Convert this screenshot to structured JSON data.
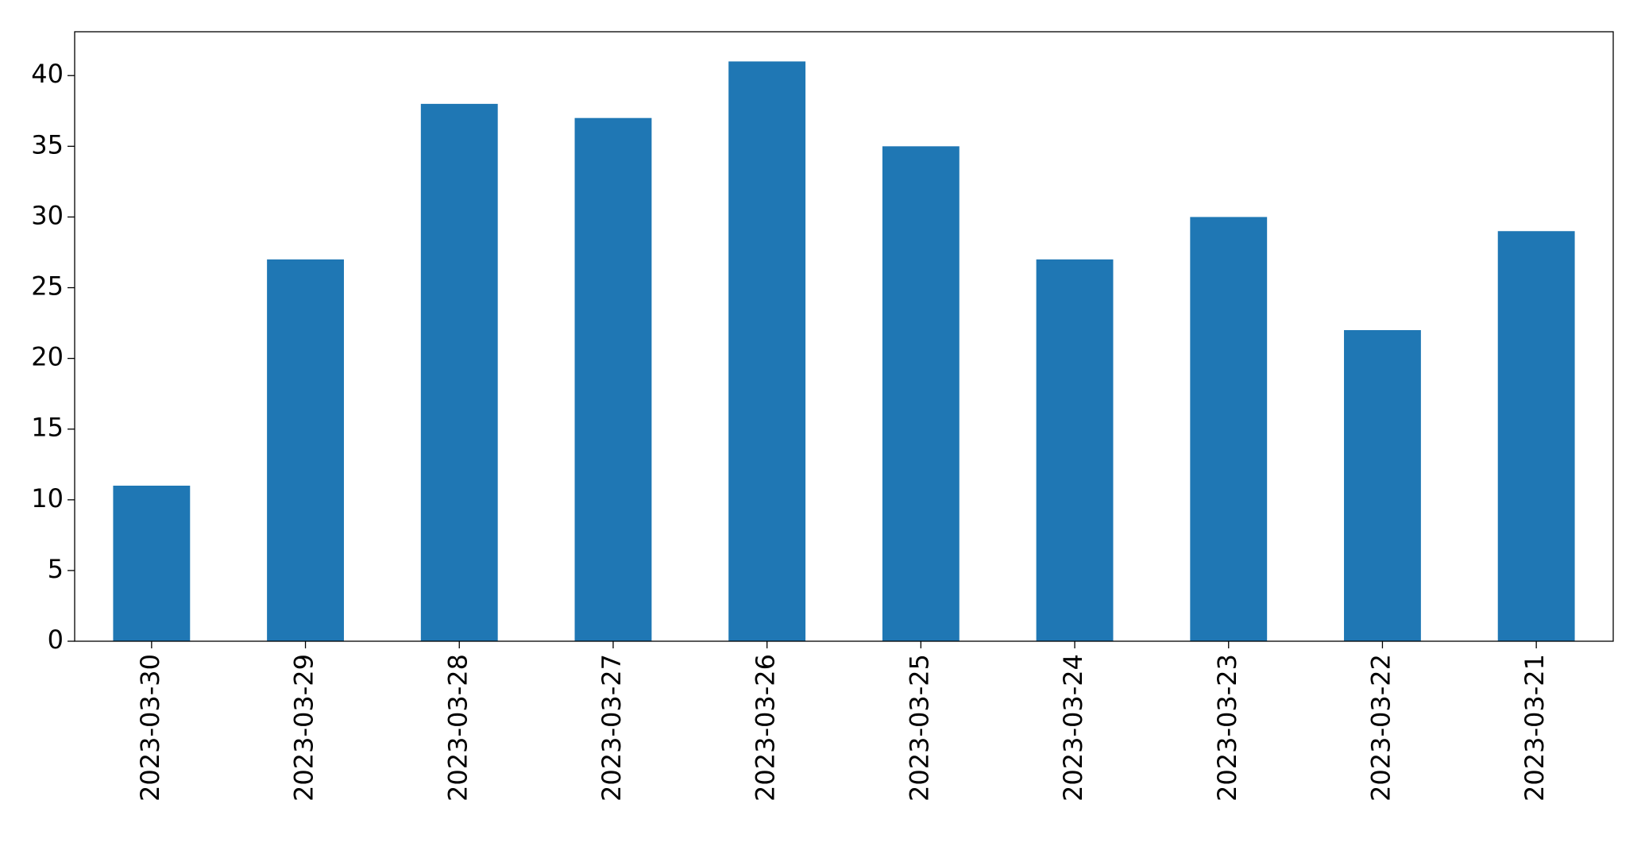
{
  "chart_data": {
    "type": "bar",
    "categories": [
      "2023-03-30",
      "2023-03-29",
      "2023-03-28",
      "2023-03-27",
      "2023-03-26",
      "2023-03-25",
      "2023-03-24",
      "2023-03-23",
      "2023-03-22",
      "2023-03-21"
    ],
    "values": [
      11,
      27,
      38,
      37,
      41,
      35,
      27,
      30,
      22,
      29
    ],
    "color": "#1f77b4",
    "ylim": [
      0,
      43.1
    ],
    "yticks": [
      0,
      5,
      10,
      15,
      20,
      25,
      30,
      35,
      40
    ],
    "grid": false
  }
}
